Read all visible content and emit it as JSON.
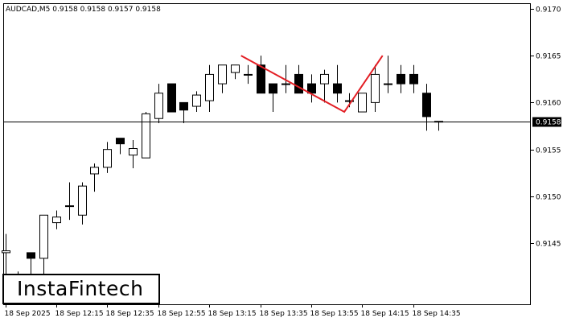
{
  "header": {
    "symbol_line": "AUDCAD,M5  0.9158 0.9158 0.9157 0.9158"
  },
  "logo": {
    "text": "InstaFintech"
  },
  "colors": {
    "pattern": "#e31e24",
    "price_tag_bg": "#000000",
    "price_tag_text": "#ffffff",
    "candle_bull_fill": "#ffffff",
    "candle_bear_fill": "#000000"
  },
  "chart_data": {
    "type": "candlestick",
    "symbol": "AUDCAD",
    "timeframe": "M5",
    "ylim": [
      0.91385,
      0.91705
    ],
    "y_ticks": [
      "0.9170",
      "0.9165",
      "0.9160",
      "0.9155",
      "0.9150",
      "0.9145"
    ],
    "x_ticks": [
      "18 Sep 2025",
      "18 Sep 12:15",
      "18 Sep 12:35",
      "18 Sep 12:55",
      "18 Sep 13:15",
      "18 Sep 13:35",
      "18 Sep 13:55",
      "18 Sep 14:15",
      "18 Sep 14:35"
    ],
    "current_price": "0.9158",
    "candles": [
      {
        "o": 0.9144,
        "h": 0.9146,
        "l": 0.91385,
        "c": 0.91442
      },
      {
        "o": 0.91415,
        "h": 0.9142,
        "l": 0.91385,
        "c": 0.91415
      },
      {
        "o": 0.9144,
        "h": 0.9144,
        "l": 0.91385,
        "c": 0.91434
      },
      {
        "o": 0.91434,
        "h": 0.9148,
        "l": 0.914,
        "c": 0.9148
      },
      {
        "o": 0.91472,
        "h": 0.91485,
        "l": 0.91465,
        "c": 0.91478
      },
      {
        "o": 0.9149,
        "h": 0.91515,
        "l": 0.91475,
        "c": 0.9149
      },
      {
        "o": 0.9148,
        "h": 0.91515,
        "l": 0.9147,
        "c": 0.91511
      },
      {
        "o": 0.91524,
        "h": 0.91535,
        "l": 0.91505,
        "c": 0.91531
      },
      {
        "o": 0.91531,
        "h": 0.91558,
        "l": 0.91525,
        "c": 0.9155
      },
      {
        "o": 0.91562,
        "h": 0.91562,
        "l": 0.91545,
        "c": 0.91556
      },
      {
        "o": 0.91544,
        "h": 0.9156,
        "l": 0.9153,
        "c": 0.91551
      },
      {
        "o": 0.91541,
        "h": 0.9159,
        "l": 0.91541,
        "c": 0.91588
      },
      {
        "o": 0.91583,
        "h": 0.9162,
        "l": 0.91578,
        "c": 0.9161
      },
      {
        "o": 0.9162,
        "h": 0.9162,
        "l": 0.9159,
        "c": 0.9159
      },
      {
        "o": 0.916,
        "h": 0.916,
        "l": 0.91578,
        "c": 0.91592
      },
      {
        "o": 0.91596,
        "h": 0.91612,
        "l": 0.9159,
        "c": 0.91608
      },
      {
        "o": 0.91602,
        "h": 0.9164,
        "l": 0.9159,
        "c": 0.9163
      },
      {
        "o": 0.9162,
        "h": 0.9164,
        "l": 0.9161,
        "c": 0.9164
      },
      {
        "o": 0.91632,
        "h": 0.9164,
        "l": 0.91625,
        "c": 0.9164
      },
      {
        "o": 0.9163,
        "h": 0.9164,
        "l": 0.9162,
        "c": 0.9163
      },
      {
        "o": 0.9164,
        "h": 0.9165,
        "l": 0.9161,
        "c": 0.9161
      },
      {
        "o": 0.9162,
        "h": 0.9162,
        "l": 0.9159,
        "c": 0.9161
      },
      {
        "o": 0.9162,
        "h": 0.9164,
        "l": 0.9161,
        "c": 0.9162
      },
      {
        "o": 0.9163,
        "h": 0.9164,
        "l": 0.9161,
        "c": 0.9161
      },
      {
        "o": 0.9162,
        "h": 0.9163,
        "l": 0.916,
        "c": 0.9161
      },
      {
        "o": 0.9162,
        "h": 0.91635,
        "l": 0.916,
        "c": 0.9163
      },
      {
        "o": 0.9162,
        "h": 0.9164,
        "l": 0.916,
        "c": 0.9161
      },
      {
        "o": 0.91602,
        "h": 0.9161,
        "l": 0.91595,
        "c": 0.91602
      },
      {
        "o": 0.9159,
        "h": 0.9161,
        "l": 0.9159,
        "c": 0.9161
      },
      {
        "o": 0.916,
        "h": 0.9164,
        "l": 0.9159,
        "c": 0.9163
      },
      {
        "o": 0.9162,
        "h": 0.9165,
        "l": 0.9161,
        "c": 0.9162
      },
      {
        "o": 0.9163,
        "h": 0.9164,
        "l": 0.9161,
        "c": 0.9162
      },
      {
        "o": 0.9163,
        "h": 0.9164,
        "l": 0.9161,
        "c": 0.9162
      },
      {
        "o": 0.9161,
        "h": 0.9162,
        "l": 0.9157,
        "c": 0.91585
      },
      {
        "o": 0.9158,
        "h": 0.9158,
        "l": 0.9157,
        "c": 0.9158
      }
    ],
    "pattern_line": [
      {
        "candle": 18.5,
        "price": 0.9165
      },
      {
        "candle": 26.6,
        "price": 0.9159
      },
      {
        "candle": 29.6,
        "price": 0.9165
      }
    ]
  }
}
